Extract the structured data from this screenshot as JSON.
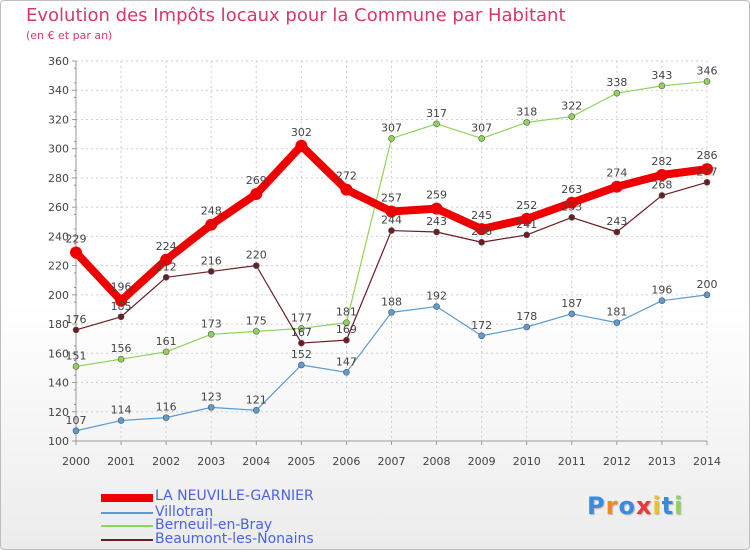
{
  "chart_data": {
    "type": "line",
    "title": "Evolution des Impôts locaux pour la Commune par Habitant",
    "subtitle": "(en € et par an)",
    "x": [
      2000,
      2001,
      2002,
      2003,
      2004,
      2005,
      2006,
      2007,
      2008,
      2009,
      2010,
      2011,
      2012,
      2013,
      2014
    ],
    "ylim": [
      100,
      360
    ],
    "yticks": [
      100,
      120,
      140,
      160,
      180,
      200,
      220,
      240,
      260,
      280,
      300,
      320,
      340,
      360
    ],
    "grid": true,
    "legend_position": "bottom-left",
    "series": [
      {
        "name": "Villotran",
        "color": "#5b9bd5",
        "values": [
          107,
          114,
          116,
          123,
          121,
          152,
          147,
          188,
          192,
          172,
          178,
          187,
          181,
          196,
          200
        ]
      },
      {
        "name": "Berneuil-en-Bray",
        "color": "#8fd45a",
        "values": [
          151,
          156,
          161,
          173,
          175,
          177,
          181,
          307,
          317,
          307,
          318,
          322,
          338,
          343,
          346
        ]
      },
      {
        "name": "Beaumont-les-Nonains",
        "color": "#6b1d23",
        "values": [
          176,
          185,
          212,
          216,
          220,
          167,
          169,
          244,
          243,
          236,
          241,
          253,
          243,
          268,
          277
        ]
      },
      {
        "name": "LA NEUVILLE-GARNIER",
        "color": "#ee0000",
        "values": [
          229,
          196,
          224,
          248,
          269,
          302,
          272,
          257,
          259,
          245,
          252,
          263,
          274,
          282,
          286
        ]
      }
    ]
  },
  "legend": [
    {
      "label": "LA NEUVILLE-GARNIER",
      "color": "#ee0000"
    },
    {
      "label": "Villotran",
      "color": "#5b9bd5"
    },
    {
      "label": "Berneuil-en-Bray",
      "color": "#8fd45a"
    },
    {
      "label": "Beaumont-les-Nonains",
      "color": "#6b1d23"
    }
  ],
  "logo": {
    "text": "Proxiti",
    "letters": [
      "P",
      "r",
      "o",
      "x",
      "i",
      "t",
      "i"
    ],
    "colors": [
      "#3a8be0",
      "#f08c1e",
      "#3a8be0",
      "#e83a3a",
      "#f0c21e",
      "#3a8be0",
      "#8fd45a"
    ]
  }
}
